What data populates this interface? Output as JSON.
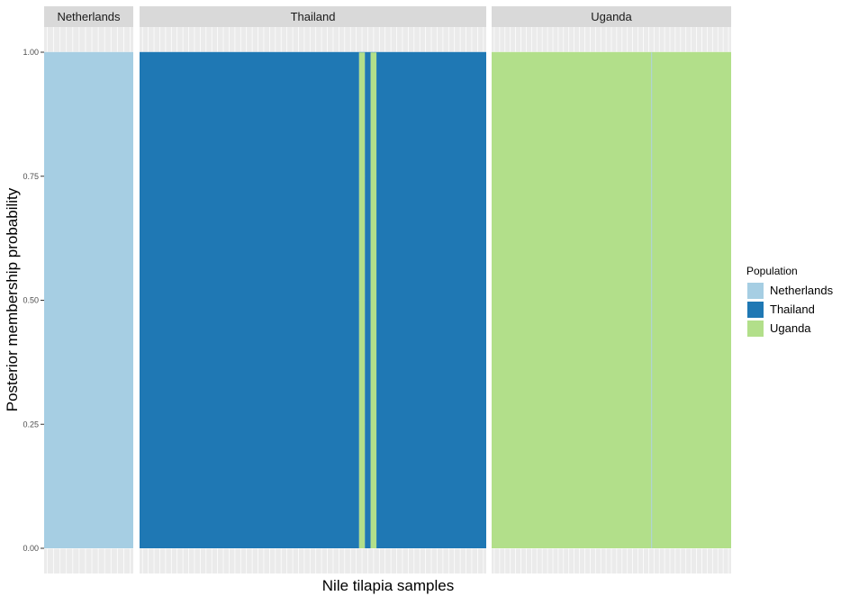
{
  "chart_data": {
    "type": "bar",
    "subtype": "stacked-membership-faceted",
    "xlabel": "Nile tilapia samples",
    "ylabel": "Posterior membership probability",
    "ylim": [
      0,
      1
    ],
    "yticks": [
      "0.00",
      "0.25",
      "0.50",
      "0.75",
      "1.00"
    ],
    "grid": true,
    "legend": {
      "title": "Population",
      "position": "right",
      "entries": [
        "Netherlands",
        "Thailand",
        "Uganda"
      ]
    },
    "colors": {
      "Netherlands": "#a6cee3",
      "Thailand": "#1f78b4",
      "Uganda": "#b2df8a"
    },
    "facets": [
      {
        "label": "Netherlands",
        "n_samples": 14,
        "segments": [
          {
            "from": 0,
            "to": 14,
            "Netherlands": 1.0,
            "Thailand": 0.0,
            "Uganda": 0.0
          }
        ]
      },
      {
        "label": "Thailand",
        "n_samples": 60,
        "segments": [
          {
            "from": 0,
            "to": 38,
            "Netherlands": 0.0,
            "Thailand": 1.0,
            "Uganda": 0.0
          },
          {
            "from": 38,
            "to": 39,
            "Netherlands": 0.0,
            "Thailand": 0.0,
            "Uganda": 1.0
          },
          {
            "from": 39,
            "to": 40,
            "Netherlands": 0.0,
            "Thailand": 1.0,
            "Uganda": 0.0
          },
          {
            "from": 40,
            "to": 41,
            "Netherlands": 0.0,
            "Thailand": 0.0,
            "Uganda": 1.0
          },
          {
            "from": 41,
            "to": 60,
            "Netherlands": 0.0,
            "Thailand": 1.0,
            "Uganda": 0.0
          }
        ]
      },
      {
        "label": "Uganda",
        "n_samples": 45,
        "segments": [
          {
            "from": 0,
            "to": 30,
            "Netherlands": 0.0,
            "Thailand": 0.0,
            "Uganda": 1.0
          },
          {
            "from": 30,
            "to": 30.15,
            "Netherlands": 1.0,
            "Thailand": 0.0,
            "Uganda": 0.0
          },
          {
            "from": 30.15,
            "to": 45,
            "Netherlands": 0.0,
            "Thailand": 0.0,
            "Uganda": 1.0
          }
        ]
      }
    ]
  }
}
